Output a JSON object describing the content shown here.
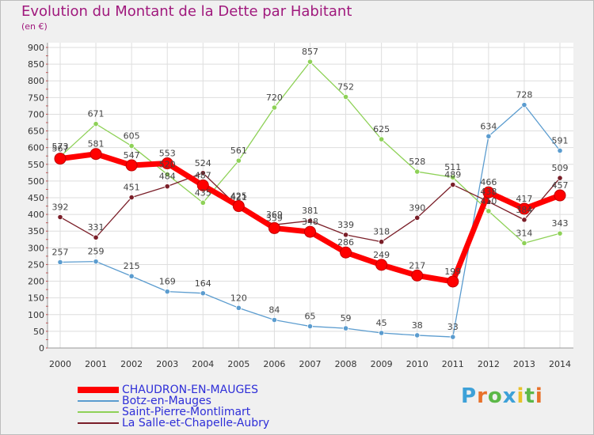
{
  "title": "Evolution du Montant de la Dette par Habitant",
  "subtitle": "(en €)",
  "logo": "Proxiti",
  "colors": {
    "title": "#a0197d",
    "legend_text": "#2e2ed8"
  },
  "chart_data": {
    "type": "line",
    "x": [
      "2000",
      "2001",
      "2002",
      "2003",
      "2004",
      "2005",
      "2006",
      "2007",
      "2008",
      "2009",
      "2010",
      "2011",
      "2012",
      "2013",
      "2014"
    ],
    "ylim": [
      0,
      900
    ],
    "yticks": [
      0,
      50,
      100,
      150,
      200,
      250,
      300,
      350,
      400,
      450,
      500,
      550,
      600,
      650,
      700,
      750,
      800,
      850,
      900
    ],
    "grid": true,
    "legend_position": "bottom-left",
    "series": [
      {
        "name": "CHAUDRON-EN-MAUGES",
        "color": "#ff0000",
        "values": [
          567,
          581,
          547,
          553,
          487,
          425,
          359,
          348,
          286,
          249,
          217,
          199,
          466,
          417,
          457
        ]
      },
      {
        "name": "Botz-en-Mauges",
        "color": "#5b9ccf",
        "values": [
          257,
          259,
          215,
          169,
          164,
          120,
          84,
          65,
          59,
          45,
          38,
          33,
          634,
          728,
          591
        ]
      },
      {
        "name": "Saint-Pierre-Montlimart",
        "color": "#8ed157",
        "values": [
          573,
          671,
          605,
          520,
          435,
          561,
          720,
          857,
          752,
          625,
          528,
          511,
          410,
          314,
          343
        ]
      },
      {
        "name": "La Salle-et-Chapelle-Aubry",
        "color": "#7a1e28",
        "values": [
          392,
          331,
          451,
          484,
          524,
          421,
          369,
          381,
          339,
          318,
          390,
          489,
          438,
          384,
          509
        ]
      }
    ]
  }
}
